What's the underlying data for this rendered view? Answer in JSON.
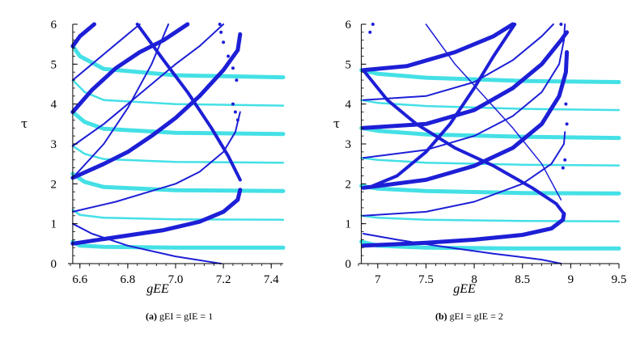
{
  "chart_data": [
    {
      "id": "a",
      "type": "line",
      "caption": {
        "tag": "(a)",
        "text": "gEI = gIE = 1"
      },
      "xlabel": "gEE",
      "ylabel": "τ",
      "xlim": [
        6.55,
        7.45
      ],
      "ylim": [
        0,
        6
      ],
      "xticks": [
        6.6,
        6.8,
        7.0,
        7.2,
        7.4
      ],
      "xtick_labels": [
        "6.6",
        "6.8",
        "7.0",
        "7.2",
        "7.4"
      ],
      "yticks": [
        0,
        1,
        2,
        3,
        4,
        5,
        6
      ],
      "ytick_labels": [
        "0",
        "1",
        "2",
        "3",
        "4",
        "5",
        "6"
      ],
      "vline_x": 6.57,
      "colors": {
        "cyan": "#44e0e6",
        "blue": "#1d1fd6"
      },
      "series": [
        {
          "color": "cyan",
          "width": 5,
          "points": [
            [
              6.57,
              0.55
            ],
            [
              6.6,
              0.45
            ],
            [
              6.7,
              0.42
            ],
            [
              7.0,
              0.4
            ],
            [
              7.45,
              0.4
            ]
          ]
        },
        {
          "color": "cyan",
          "width": 2.5,
          "points": [
            [
              6.57,
              1.35
            ],
            [
              6.6,
              1.22
            ],
            [
              6.7,
              1.15
            ],
            [
              7.0,
              1.11
            ],
            [
              7.45,
              1.1
            ]
          ]
        },
        {
          "color": "cyan",
          "width": 5,
          "points": [
            [
              6.57,
              2.25
            ],
            [
              6.62,
              2.05
            ],
            [
              6.7,
              1.92
            ],
            [
              7.0,
              1.84
            ],
            [
              7.45,
              1.82
            ]
          ]
        },
        {
          "color": "cyan",
          "width": 2.5,
          "points": [
            [
              6.57,
              2.95
            ],
            [
              6.62,
              2.75
            ],
            [
              6.7,
              2.62
            ],
            [
              7.0,
              2.55
            ],
            [
              7.45,
              2.53
            ]
          ]
        },
        {
          "color": "cyan",
          "width": 5,
          "points": [
            [
              6.57,
              3.8
            ],
            [
              6.62,
              3.55
            ],
            [
              6.7,
              3.38
            ],
            [
              7.0,
              3.28
            ],
            [
              7.45,
              3.25
            ]
          ]
        },
        {
          "color": "cyan",
          "width": 2.5,
          "points": [
            [
              6.57,
              4.6
            ],
            [
              6.62,
              4.3
            ],
            [
              6.7,
              4.1
            ],
            [
              7.0,
              4.0
            ],
            [
              7.45,
              3.96
            ]
          ]
        },
        {
          "color": "cyan",
          "width": 5,
          "points": [
            [
              6.57,
              5.45
            ],
            [
              6.6,
              5.2
            ],
            [
              6.7,
              4.88
            ],
            [
              7.0,
              4.72
            ],
            [
              7.45,
              4.67
            ]
          ]
        },
        {
          "color": "blue",
          "width": 5,
          "points": [
            [
              6.57,
              0.5
            ],
            [
              6.75,
              0.66
            ],
            [
              6.95,
              0.84
            ],
            [
              7.1,
              1.05
            ],
            [
              7.2,
              1.3
            ],
            [
              7.26,
              1.6
            ],
            [
              7.27,
              1.85
            ]
          ]
        },
        {
          "color": "blue",
          "width": 2,
          "points": [
            [
              6.57,
              1.0
            ],
            [
              6.65,
              0.75
            ],
            [
              6.8,
              0.45
            ],
            [
              7.0,
              0.18
            ],
            [
              7.19,
              0.0
            ]
          ]
        },
        {
          "color": "blue",
          "width": 2,
          "points": [
            [
              6.57,
              1.3
            ],
            [
              6.75,
              1.55
            ],
            [
              6.9,
              1.82
            ],
            [
              7.0,
              2.0
            ],
            [
              7.1,
              2.3
            ],
            [
              7.2,
              2.8
            ],
            [
              7.25,
              3.3
            ],
            [
              7.27,
              3.8
            ]
          ]
        },
        {
          "color": "blue",
          "width": 5,
          "points": [
            [
              6.57,
              2.15
            ],
            [
              6.7,
              2.5
            ],
            [
              6.8,
              2.8
            ],
            [
              6.9,
              3.2
            ],
            [
              7.0,
              3.65
            ],
            [
              7.1,
              4.2
            ],
            [
              7.2,
              4.85
            ],
            [
              7.26,
              5.35
            ],
            [
              7.27,
              5.75
            ]
          ]
        },
        {
          "color": "blue",
          "width": 2,
          "points": [
            [
              6.57,
              2.95
            ],
            [
              6.7,
              3.5
            ],
            [
              6.8,
              4.0
            ],
            [
              6.9,
              4.5
            ],
            [
              7.0,
              5.0
            ],
            [
              7.1,
              5.45
            ],
            [
              7.2,
              6.0
            ]
          ]
        },
        {
          "color": "blue",
          "width": 5,
          "points": [
            [
              6.57,
              3.8
            ],
            [
              6.65,
              4.35
            ],
            [
              6.75,
              4.9
            ],
            [
              6.85,
              5.3
            ],
            [
              6.95,
              5.6
            ],
            [
              7.05,
              6.0
            ]
          ]
        },
        {
          "color": "blue",
          "width": 2,
          "points": [
            [
              6.57,
              4.6
            ],
            [
              6.65,
              5.0
            ],
            [
              6.75,
              5.5
            ],
            [
              6.85,
              6.0
            ]
          ]
        },
        {
          "color": "blue",
          "width": 5,
          "points": [
            [
              6.57,
              5.45
            ],
            [
              6.6,
              5.7
            ],
            [
              6.66,
              6.0
            ]
          ]
        },
        {
          "color": "blue",
          "width": 4,
          "points": [
            [
              6.84,
              6.0
            ],
            [
              6.95,
              5.1
            ],
            [
              7.05,
              4.3
            ],
            [
              7.15,
              3.4
            ],
            [
              7.22,
              2.7
            ],
            [
              7.27,
              2.1
            ]
          ]
        },
        {
          "color": "blue",
          "width": 2,
          "points": [
            [
              6.57,
              2.15
            ],
            [
              6.7,
              3.0
            ],
            [
              6.8,
              3.9
            ],
            [
              6.9,
              5.0
            ],
            [
              6.97,
              6.0
            ]
          ]
        }
      ],
      "dots": [
        [
          7.24,
          4.0
        ],
        [
          7.25,
          3.8
        ],
        [
          7.26,
          3.6
        ],
        [
          7.255,
          4.6
        ],
        [
          7.24,
          4.9
        ],
        [
          7.22,
          5.2
        ],
        [
          7.2,
          5.55
        ],
        [
          7.19,
          5.8
        ],
        [
          7.185,
          6.0
        ]
      ]
    },
    {
      "id": "b",
      "type": "line",
      "caption": {
        "tag": "(b)",
        "text": "gEI = gIE = 2"
      },
      "xlabel": "gEE",
      "ylabel": "τ",
      "xlim": [
        6.8,
        9.5
      ],
      "ylim": [
        0,
        6
      ],
      "xticks": [
        7,
        7.5,
        8,
        8.5,
        9,
        9.5
      ],
      "xtick_labels": [
        "7",
        "7.5",
        "8",
        "8.5",
        "9",
        "9.5"
      ],
      "yticks": [
        0,
        1,
        2,
        3,
        4,
        5,
        6
      ],
      "ytick_labels": [
        "0",
        "1",
        "2",
        "3",
        "4",
        "5",
        "6"
      ],
      "vline_x": 6.83,
      "colors": {
        "cyan": "#44e0e6",
        "blue": "#1d1fd6"
      },
      "series": [
        {
          "color": "cyan",
          "width": 5,
          "points": [
            [
              6.83,
              0.55
            ],
            [
              7.0,
              0.45
            ],
            [
              7.5,
              0.4
            ],
            [
              8.5,
              0.38
            ],
            [
              9.5,
              0.38
            ]
          ]
        },
        {
          "color": "cyan",
          "width": 2.5,
          "points": [
            [
              6.83,
              1.2
            ],
            [
              7.0,
              1.15
            ],
            [
              7.5,
              1.1
            ],
            [
              8.5,
              1.07
            ],
            [
              9.5,
              1.06
            ]
          ]
        },
        {
          "color": "cyan",
          "width": 5,
          "points": [
            [
              6.83,
              1.95
            ],
            [
              7.0,
              1.88
            ],
            [
              7.5,
              1.82
            ],
            [
              8.5,
              1.77
            ],
            [
              9.5,
              1.76
            ]
          ]
        },
        {
          "color": "cyan",
          "width": 2.5,
          "points": [
            [
              6.83,
              2.65
            ],
            [
              7.0,
              2.6
            ],
            [
              7.5,
              2.53
            ],
            [
              8.5,
              2.48
            ],
            [
              9.5,
              2.46
            ]
          ]
        },
        {
          "color": "cyan",
          "width": 5,
          "points": [
            [
              6.83,
              3.4
            ],
            [
              7.0,
              3.33
            ],
            [
              7.5,
              3.24
            ],
            [
              8.5,
              3.18
            ],
            [
              9.5,
              3.15
            ]
          ]
        },
        {
          "color": "cyan",
          "width": 2.5,
          "points": [
            [
              6.83,
              4.1
            ],
            [
              7.0,
              4.03
            ],
            [
              7.5,
              3.95
            ],
            [
              8.5,
              3.88
            ],
            [
              9.5,
              3.85
            ]
          ]
        },
        {
          "color": "cyan",
          "width": 5,
          "points": [
            [
              6.83,
              4.85
            ],
            [
              7.0,
              4.76
            ],
            [
              7.5,
              4.66
            ],
            [
              8.5,
              4.58
            ],
            [
              9.5,
              4.55
            ]
          ]
        },
        {
          "color": "blue",
          "width": 5,
          "points": [
            [
              6.85,
              0.45
            ],
            [
              7.5,
              0.52
            ],
            [
              8.0,
              0.6
            ],
            [
              8.5,
              0.72
            ],
            [
              8.8,
              0.88
            ],
            [
              8.92,
              1.1
            ],
            [
              8.93,
              1.25
            ]
          ]
        },
        {
          "color": "blue",
          "width": 2,
          "points": [
            [
              6.85,
              0.75
            ],
            [
              7.2,
              0.6
            ],
            [
              7.6,
              0.45
            ],
            [
              8.2,
              0.25
            ],
            [
              8.7,
              0.1
            ],
            [
              8.9,
              0.0
            ]
          ]
        },
        {
          "color": "blue",
          "width": 2,
          "points": [
            [
              6.85,
              1.2
            ],
            [
              7.5,
              1.3
            ],
            [
              8.0,
              1.55
            ],
            [
              8.5,
              2.0
            ],
            [
              8.8,
              2.5
            ],
            [
              8.93,
              3.0
            ],
            [
              8.94,
              3.3
            ]
          ]
        },
        {
          "color": "blue",
          "width": 5,
          "points": [
            [
              6.85,
              1.9
            ],
            [
              7.5,
              2.1
            ],
            [
              8.0,
              2.45
            ],
            [
              8.4,
              2.9
            ],
            [
              8.7,
              3.5
            ],
            [
              8.88,
              4.2
            ],
            [
              8.95,
              4.8
            ],
            [
              8.96,
              5.3
            ]
          ]
        },
        {
          "color": "blue",
          "width": 2,
          "points": [
            [
              6.85,
              2.65
            ],
            [
              7.5,
              2.85
            ],
            [
              8.0,
              3.2
            ],
            [
              8.4,
              3.7
            ],
            [
              8.7,
              4.3
            ],
            [
              8.88,
              5.0
            ],
            [
              8.93,
              5.6
            ],
            [
              8.94,
              6.0
            ]
          ]
        },
        {
          "color": "blue",
          "width": 5,
          "points": [
            [
              6.85,
              3.4
            ],
            [
              7.5,
              3.5
            ],
            [
              8.0,
              3.85
            ],
            [
              8.4,
              4.4
            ],
            [
              8.7,
              5.0
            ],
            [
              8.9,
              5.6
            ],
            [
              8.96,
              5.8
            ]
          ]
        },
        {
          "color": "blue",
          "width": 2,
          "points": [
            [
              6.85,
              4.1
            ],
            [
              7.5,
              4.2
            ],
            [
              8.0,
              4.55
            ],
            [
              8.4,
              5.1
            ],
            [
              8.7,
              5.7
            ],
            [
              8.82,
              6.0
            ]
          ]
        },
        {
          "color": "blue",
          "width": 5,
          "points": [
            [
              6.85,
              4.85
            ],
            [
              7.3,
              4.95
            ],
            [
              7.8,
              5.3
            ],
            [
              8.2,
              5.7
            ],
            [
              8.4,
              6.0
            ]
          ]
        },
        {
          "color": "blue",
          "width": 4,
          "points": [
            [
              6.85,
              4.85
            ],
            [
              7.1,
              4.1
            ],
            [
              7.4,
              3.5
            ],
            [
              7.8,
              2.9
            ],
            [
              8.2,
              2.45
            ],
            [
              8.6,
              1.9
            ],
            [
              8.85,
              1.5
            ],
            [
              8.93,
              1.25
            ]
          ]
        },
        {
          "color": "blue",
          "width": 4,
          "points": [
            [
              8.42,
              6.0
            ],
            [
              8.2,
              5.2
            ],
            [
              8.0,
              4.4
            ],
            [
              7.75,
              3.5
            ],
            [
              7.5,
              2.8
            ],
            [
              7.2,
              2.2
            ],
            [
              6.95,
              1.95
            ]
          ]
        },
        {
          "color": "blue",
          "width": 1.5,
          "points": [
            [
              7.5,
              6.0
            ],
            [
              7.8,
              5.0
            ],
            [
              8.1,
              4.2
            ],
            [
              8.4,
              3.4
            ],
            [
              8.7,
              2.5
            ],
            [
              8.9,
              1.6
            ]
          ]
        }
      ],
      "dots": [
        [
          6.95,
          6.0
        ],
        [
          6.92,
          5.8
        ],
        [
          8.9,
          6.0
        ],
        [
          8.92,
          5.6
        ],
        [
          8.95,
          4.0
        ],
        [
          8.96,
          3.5
        ],
        [
          8.94,
          2.6
        ],
        [
          8.92,
          2.4
        ]
      ]
    }
  ]
}
